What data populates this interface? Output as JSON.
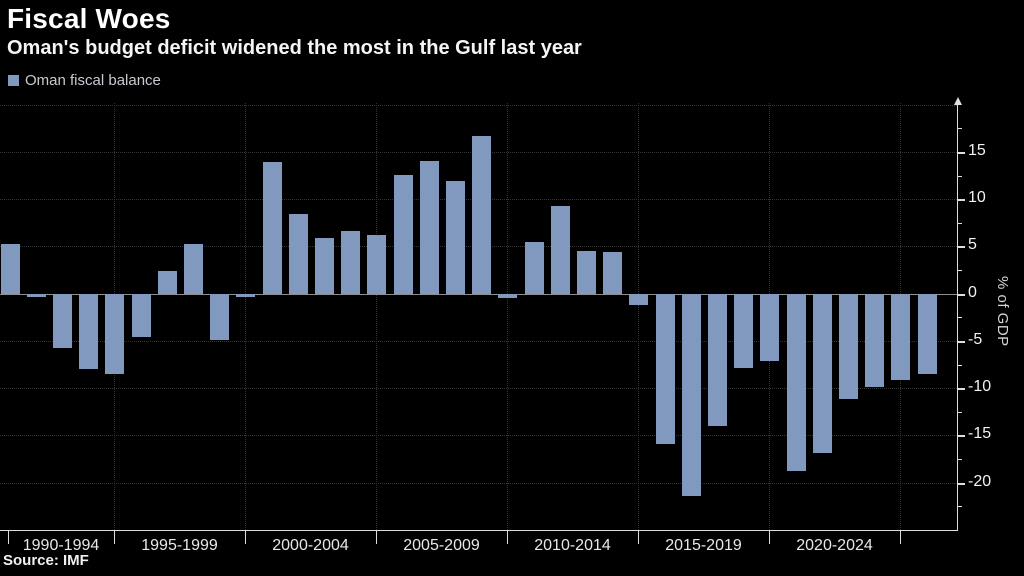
{
  "header": {
    "title": "Fiscal Woes",
    "subtitle": "Oman's budget deficit widened the most in the Gulf last year"
  },
  "legend": {
    "label": "Oman fiscal balance"
  },
  "source_note": "Source: IMF",
  "chart_data": {
    "type": "bar",
    "title": "Fiscal Woes",
    "subtitle": "Oman's budget deficit widened the most in the Gulf last year",
    "ylabel": "% of GDP",
    "ylim": [
      -25,
      20.5
    ],
    "ytick_labels": [
      15,
      10,
      5,
      0,
      -5,
      -10,
      -15,
      -20
    ],
    "ygrid_values": [
      20,
      15,
      10,
      5,
      -5,
      -10,
      -15,
      -20
    ],
    "yticks_minor": [
      17.5,
      12.5,
      7.5,
      2.5,
      -2.5,
      -7.5,
      -12.5,
      -17.5,
      -22.5
    ],
    "x_group_labels": [
      "1990-1994",
      "1995-1999",
      "2000-2004",
      "2005-2009",
      "2010-2014",
      "2015-2019",
      "2020-2024"
    ],
    "x_boundary_years": [
      1995,
      2000,
      2005,
      2010,
      2015,
      2020,
      2025
    ],
    "grid": "dotted dark-gray, horizontal every 5 units, vertical every 5 years",
    "legend_position": "top-left",
    "y_axis_side": "right",
    "background_color": "#000000",
    "bar_color": "#8299bf",
    "axis_color": "#dedede",
    "series": [
      {
        "name": "Oman fiscal balance",
        "x": [
          1990,
          1991,
          1992,
          1993,
          1994,
          1995,
          1996,
          1997,
          1998,
          1999,
          2000,
          2001,
          2002,
          2003,
          2004,
          2005,
          2006,
          2007,
          2008,
          2009,
          2010,
          2011,
          2012,
          2013,
          2014,
          2015,
          2016,
          2017,
          2018,
          2019,
          2020,
          2021,
          2022,
          2023,
          2024,
          2025
        ],
        "values": [
          5.3,
          -0.3,
          -5.7,
          -8.0,
          -8.5,
          -4.6,
          2.4,
          5.3,
          -4.9,
          -0.3,
          13.9,
          8.4,
          5.9,
          6.6,
          6.2,
          12.6,
          14.0,
          11.9,
          16.7,
          -0.4,
          5.5,
          9.3,
          4.5,
          4.4,
          -1.2,
          -15.9,
          -21.4,
          -14.0,
          -7.9,
          -7.1,
          -18.8,
          -16.8,
          -11.1,
          -9.9,
          -9.1,
          -8.5
        ]
      }
    ]
  }
}
